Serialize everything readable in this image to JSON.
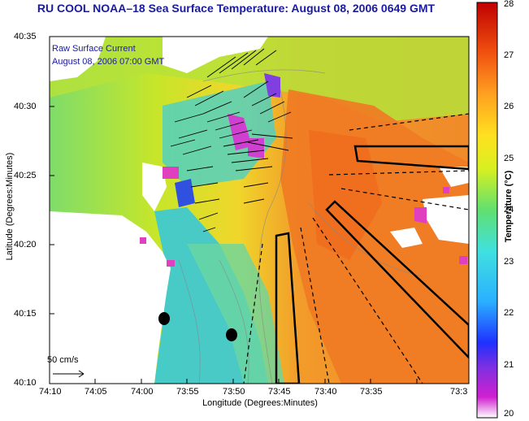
{
  "title": "RU COOL  NOAA–18  Sea Surface Temperature:  August 08, 2006 0649 GMT",
  "legend": {
    "line1": "Raw Surface Current",
    "line2": "August 08, 2006 07:00 GMT"
  },
  "scale_label": "50 cm/s",
  "axes": {
    "xlabel": "Longitude (Degrees:Minutes)",
    "ylabel": "Latitude (Degrees:Minutes)",
    "xticks": [
      "74:10",
      "74:05",
      "74:00",
      "73:55",
      "73:50",
      "73:45",
      "73:40",
      "73:35",
      "73:3"
    ],
    "yticks": [
      "40:35",
      "40:30",
      "40:25",
      "40:20",
      "40:15",
      "40:10"
    ]
  },
  "colorbar": {
    "label": "Temperature (°C)",
    "ticks": [
      "28",
      "27",
      "26",
      "25",
      "24",
      "23",
      "22",
      "21",
      "20"
    ],
    "min": 20,
    "max": 28
  }
}
